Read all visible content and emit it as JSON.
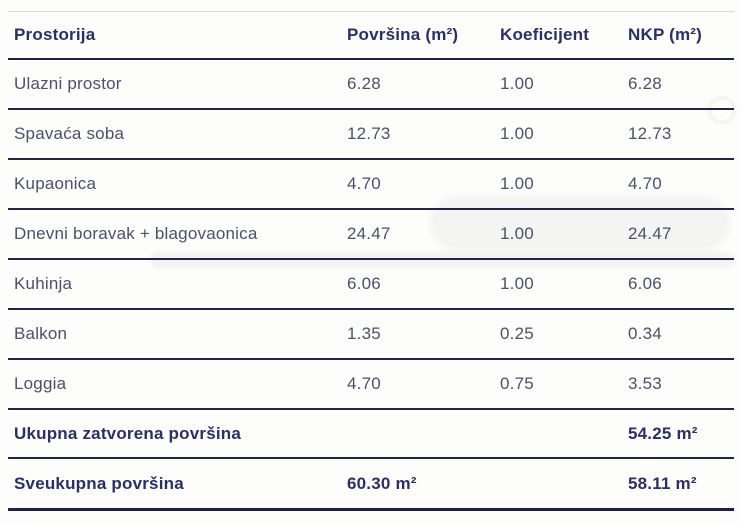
{
  "table": {
    "columns": {
      "room": "Prostorija",
      "area": "Površina (m²)",
      "coef": "Koeficijent",
      "nkp": "NKP (m²)"
    },
    "rows": [
      {
        "name": "Ulazni prostor",
        "area": "6.28",
        "coef": "1.00",
        "nkp": "6.28"
      },
      {
        "name": "Spavaća soba",
        "area": "12.73",
        "coef": "1.00",
        "nkp": "12.73"
      },
      {
        "name": "Kupaonica",
        "area": "4.70",
        "coef": "1.00",
        "nkp": "4.70"
      },
      {
        "name": "Dnevni boravak + blagovaonica",
        "area": "24.47",
        "coef": "1.00",
        "nkp": "24.47"
      },
      {
        "name": "Kuhinja",
        "area": "6.06",
        "coef": "1.00",
        "nkp": "6.06"
      },
      {
        "name": "Balkon",
        "area": "1.35",
        "coef": "0.25",
        "nkp": "0.34"
      },
      {
        "name": "Loggia",
        "area": "4.70",
        "coef": "0.75",
        "nkp": "3.53"
      }
    ],
    "totals": [
      {
        "name": "Ukupna zatvorena površina",
        "area": "",
        "coef": "",
        "nkp": "54.25 m²"
      },
      {
        "name": "Sveukupna površina",
        "area": "60.30 m²",
        "coef": "",
        "nkp": "58.11 m²"
      }
    ]
  },
  "colors": {
    "background": "#fdfdfb",
    "header_text": "#2b2f66",
    "body_text": "#4b5169",
    "separator_line": "#21254a",
    "top_rule": "#d9d9d6"
  }
}
